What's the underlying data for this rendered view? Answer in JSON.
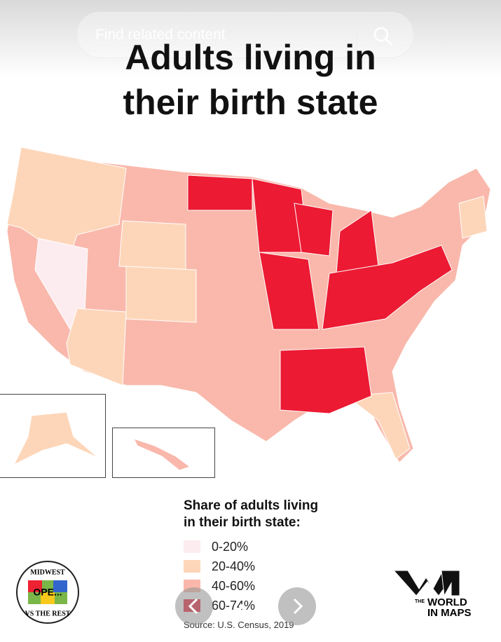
{
  "search": {
    "placeholder": "Find related content"
  },
  "title": {
    "lines": [
      "Adults living in",
      "their birth state"
    ]
  },
  "legend": {
    "title": [
      "Share of adults living",
      "in their birth state:"
    ],
    "items": [
      {
        "label": "0-20%",
        "color": "#fcecef"
      },
      {
        "label": "20-40%",
        "color": "#fdd6b9"
      },
      {
        "label": "40-60%",
        "color": "#f9b8ab"
      },
      {
        "label": "60-74%",
        "color": "#ec1a33"
      }
    ]
  },
  "source": "Source: U.S. Census, 2019",
  "logos": {
    "left": {
      "top": "MIDWEST",
      "center": "OPE...",
      "bottom": "VS THE REST"
    },
    "right": {
      "small": "THE",
      "lines": [
        "WORLD",
        "IN MAPS"
      ]
    }
  }
}
